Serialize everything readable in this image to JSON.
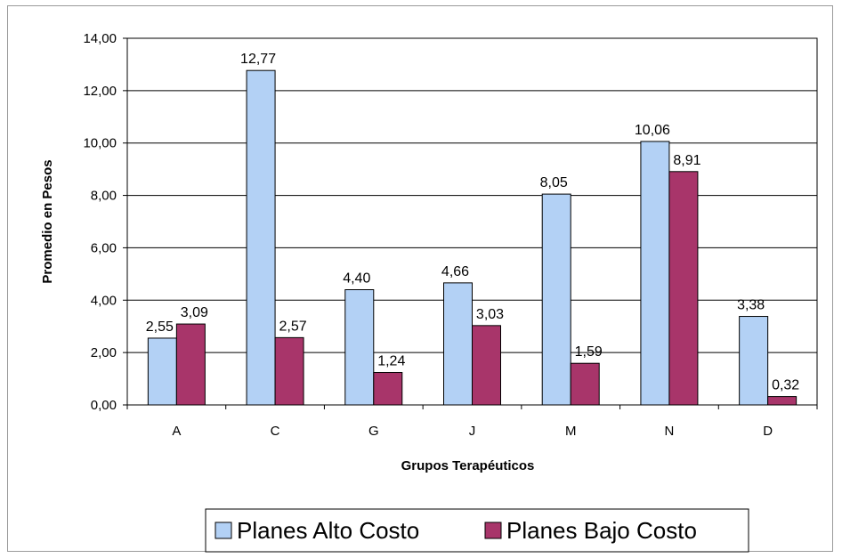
{
  "chart_data": {
    "type": "bar",
    "categories": [
      "A",
      "C",
      "G",
      "J",
      "M",
      "N",
      "D"
    ],
    "series": [
      {
        "name": "Planes Alto Costo",
        "values": [
          2.55,
          12.77,
          4.4,
          4.66,
          8.05,
          10.06,
          3.38
        ],
        "labels": [
          "2,55",
          "12,77",
          "4,40",
          "4,66",
          "8,05",
          "10,06",
          "3,38"
        ],
        "color": "#b3d1f5"
      },
      {
        "name": "Planes Bajo Costo",
        "values": [
          3.09,
          2.57,
          1.24,
          3.03,
          1.59,
          8.91,
          0.32
        ],
        "labels": [
          "3,09",
          "2,57",
          "1,24",
          "3,03",
          "1,59",
          "8,91",
          "0,32"
        ],
        "color": "#a8356a"
      }
    ],
    "xlabel": "Grupos Terapéuticos",
    "ylabel": "Promedio en Pesos",
    "ylim": [
      0,
      14
    ],
    "yticks": [
      0,
      2,
      4,
      6,
      8,
      10,
      12,
      14
    ],
    "ytick_labels": [
      "0,00",
      "2,00",
      "4,00",
      "6,00",
      "8,00",
      "10,00",
      "12,00",
      "14,00"
    ],
    "grid": true,
    "legend_position": "bottom"
  }
}
